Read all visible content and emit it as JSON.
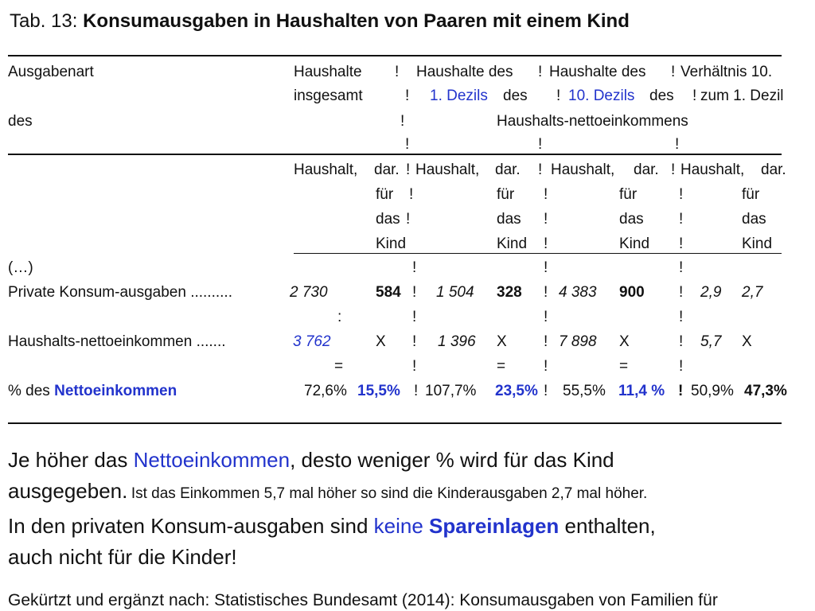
{
  "title": {
    "prefix": "Tab. 13:",
    "bold": "Konsumausgaben in Haushalten von Paaren mit einem Kind"
  },
  "header": {
    "col_label_1": "Ausgabenart",
    "col_label_2": "des",
    "c1_l1": "Haushalte",
    "c1_l2": "insgesamt",
    "c2_l1": "Haushalte des",
    "c2_l2a": "1. Dezils",
    "c2_l2b": "des",
    "c3_l1": "Haushalte des",
    "c3_l2a": "10. Dezils",
    "c3_l2b": "des",
    "c4_l1": "Verhältnis 10.",
    "c4_l2": "zum 1. Dezil",
    "span_label": "Haushalts-nettoeinkommens",
    "sep": "!"
  },
  "subheader": {
    "haushalt": "Haushalt,",
    "dar": "dar.",
    "fuer": "für",
    "das": "das",
    "kind": "Kind"
  },
  "rows": {
    "ellipsis": "(…)",
    "konsum": {
      "label": "Private Konsum-ausgaben ..........",
      "v1": "2 730",
      "v2": "584",
      "v3": "1 504",
      "v4": "328",
      "v5": "4 383",
      "v6": "900",
      "v7": "2,9",
      "v8": "2,7"
    },
    "colon": ":",
    "einkommen": {
      "label": "Haushalts-nettoeinkommen .......",
      "v1": "3 762",
      "v2": "X",
      "v3": "1 396",
      "v4": "X",
      "v5": "7 898",
      "v6": "X",
      "v7": "5,7",
      "v8": "X"
    },
    "equals": "=",
    "prozent": {
      "label_prefix": "% des",
      "label_bold": "Nettoeinkommen",
      "v1": "72,6%",
      "v2": "15,5%",
      "v3": "107,7%",
      "v4": "23,5%",
      "v5": "55,5%",
      "v6": "11,4 %",
      "v7": "50,9%",
      "v8": "47,3%"
    }
  },
  "text": {
    "p1_a": "Je höher das ",
    "p1_b": "Nettoeinkommen",
    "p1_c": ", desto weniger % wird für das Kind",
    "p2_a": "ausgegeben.",
    "p2_b": "Ist das Einkommen  5,7 mal höher so sind die Kinderausgaben 2,7 mal höher.",
    "p3_a": "In den privaten Konsum-ausgaben sind ",
    "p3_b": "keine",
    "p3_c": "Spareinlagen",
    "p3_d": " enthalten,",
    "p4": "auch nicht für die Kinder!",
    "source": "Gekürtzt und ergänzt nach: Statistisches Bundesamt (2014): Konsumausgaben von Familien für"
  },
  "colors": {
    "accent": "#2233cc",
    "text": "#111111"
  }
}
